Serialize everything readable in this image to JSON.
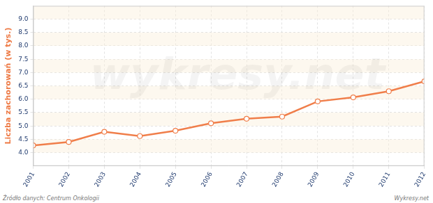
{
  "chart_data": {
    "type": "line",
    "y_label": "Liczba zachorowań (w tys.)",
    "categories": [
      "2001",
      "2002",
      "2003",
      "2004",
      "2005",
      "2006",
      "2007",
      "2008",
      "2009",
      "2010",
      "2011",
      "2012"
    ],
    "values": [
      4.27,
      4.4,
      4.78,
      4.62,
      4.82,
      5.1,
      5.27,
      5.35,
      5.92,
      6.07,
      6.3,
      6.67
    ],
    "color": "#f07e4a",
    "marker": "circle",
    "ylim": [
      3.5,
      9.5
    ],
    "yticks": [
      {
        "value": 4,
        "label": "4.0"
      },
      4.5,
      {
        "value": 5,
        "label": "5.0"
      },
      5.5,
      {
        "value": 6,
        "label": "6.0"
      },
      6.5,
      {
        "value": 7,
        "label": "7.0"
      },
      7.5,
      {
        "value": 8,
        "label": "8.0"
      },
      8.5,
      {
        "value": 9,
        "label": "9.0"
      }
    ],
    "grid": true,
    "annotations": [
      "wykresy.net",
      "Źródło danych: Centrum Onkologii",
      "Wykresy.net"
    ]
  }
}
